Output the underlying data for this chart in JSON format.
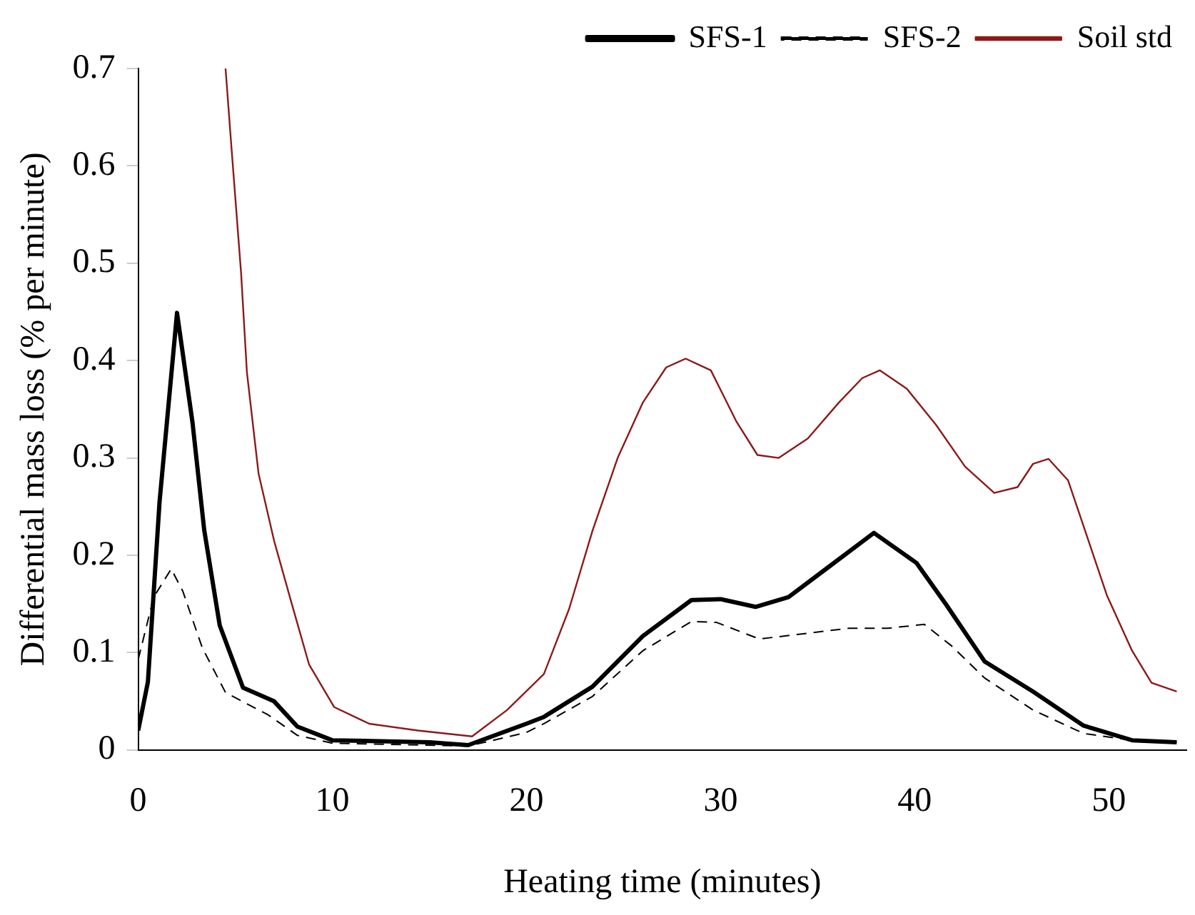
{
  "chart_data": {
    "type": "line",
    "xlabel": "Heating time (minutes)",
    "ylabel": "Differential mass loss (% per minute)",
    "xlim": [
      0,
      54
    ],
    "xticks": [
      0,
      10,
      20,
      30,
      40,
      50
    ],
    "ylim": [
      0,
      0.7
    ],
    "yticks": [
      0,
      0.1,
      0.2,
      0.3,
      0.4,
      0.5,
      0.6,
      0.7
    ],
    "grid": false,
    "legend": "top right",
    "marker": "none",
    "series": [
      {
        "name": "SFS-1",
        "color": "#000000",
        "line_style": "solid",
        "x": [
          0,
          0.5,
          1.1,
          2.0,
          2.8,
          3.4,
          4.2,
          5.4,
          7.0,
          8.2,
          10,
          15,
          17,
          20,
          20.9,
          23.4,
          26.0,
          28.5,
          30,
          31.8,
          33.5,
          35.5,
          37.9,
          40.1,
          41.6,
          43.6,
          46.1,
          48.7,
          51.2,
          53.5
        ],
        "values": [
          0.02,
          0.07,
          0.255,
          0.449,
          0.336,
          0.226,
          0.128,
          0.064,
          0.05,
          0.024,
          0.01,
          0.008,
          0.005,
          0.027,
          0.034,
          0.065,
          0.117,
          0.154,
          0.155,
          0.147,
          0.157,
          0.187,
          0.223,
          0.192,
          0.15,
          0.091,
          0.06,
          0.025,
          0.01,
          0.008
        ]
      },
      {
        "name": "SFS-2",
        "color": "#000000",
        "line_style": "dashed",
        "x": [
          0,
          0.8,
          1.7,
          2.3,
          3.3,
          4.5,
          6.7,
          8.2,
          10,
          17,
          20,
          20.9,
          23.4,
          26.0,
          28.5,
          29.8,
          32.0,
          34.1,
          36.6,
          38.6,
          40.5,
          41.9,
          43.6,
          46.1,
          48.7,
          51.2,
          53.5
        ],
        "values": [
          0.093,
          0.157,
          0.186,
          0.163,
          0.105,
          0.059,
          0.036,
          0.015,
          0.007,
          0.004,
          0.018,
          0.027,
          0.055,
          0.102,
          0.132,
          0.131,
          0.114,
          0.119,
          0.125,
          0.125,
          0.129,
          0.107,
          0.074,
          0.041,
          0.017,
          0.01,
          0.008
        ]
      },
      {
        "name": "Soil std",
        "color": "#8b1a1a",
        "line_style": "solid",
        "x": [
          4.5,
          4.8,
          5.3,
          5.6,
          6.2,
          7.0,
          7.9,
          8.8,
          10.1,
          11.9,
          14.4,
          17.2,
          19.0,
          20.9,
          22.2,
          23.4,
          24.7,
          26.0,
          27.2,
          28.2,
          29.5,
          30.8,
          31.9,
          33.0,
          34.5,
          36.1,
          37.3,
          38.2,
          39.6,
          41.1,
          42.6,
          44.1,
          45.3,
          46.1,
          46.9,
          47.9,
          48.7,
          49.9,
          51.2,
          52.2,
          53.5
        ],
        "values": [
          0.7,
          0.62,
          0.49,
          0.388,
          0.284,
          0.215,
          0.151,
          0.088,
          0.044,
          0.027,
          0.02,
          0.014,
          0.041,
          0.078,
          0.145,
          0.225,
          0.3,
          0.357,
          0.393,
          0.402,
          0.39,
          0.338,
          0.303,
          0.3,
          0.32,
          0.357,
          0.382,
          0.39,
          0.371,
          0.334,
          0.291,
          0.264,
          0.27,
          0.294,
          0.299,
          0.277,
          0.23,
          0.159,
          0.102,
          0.069,
          0.06
        ]
      }
    ]
  }
}
